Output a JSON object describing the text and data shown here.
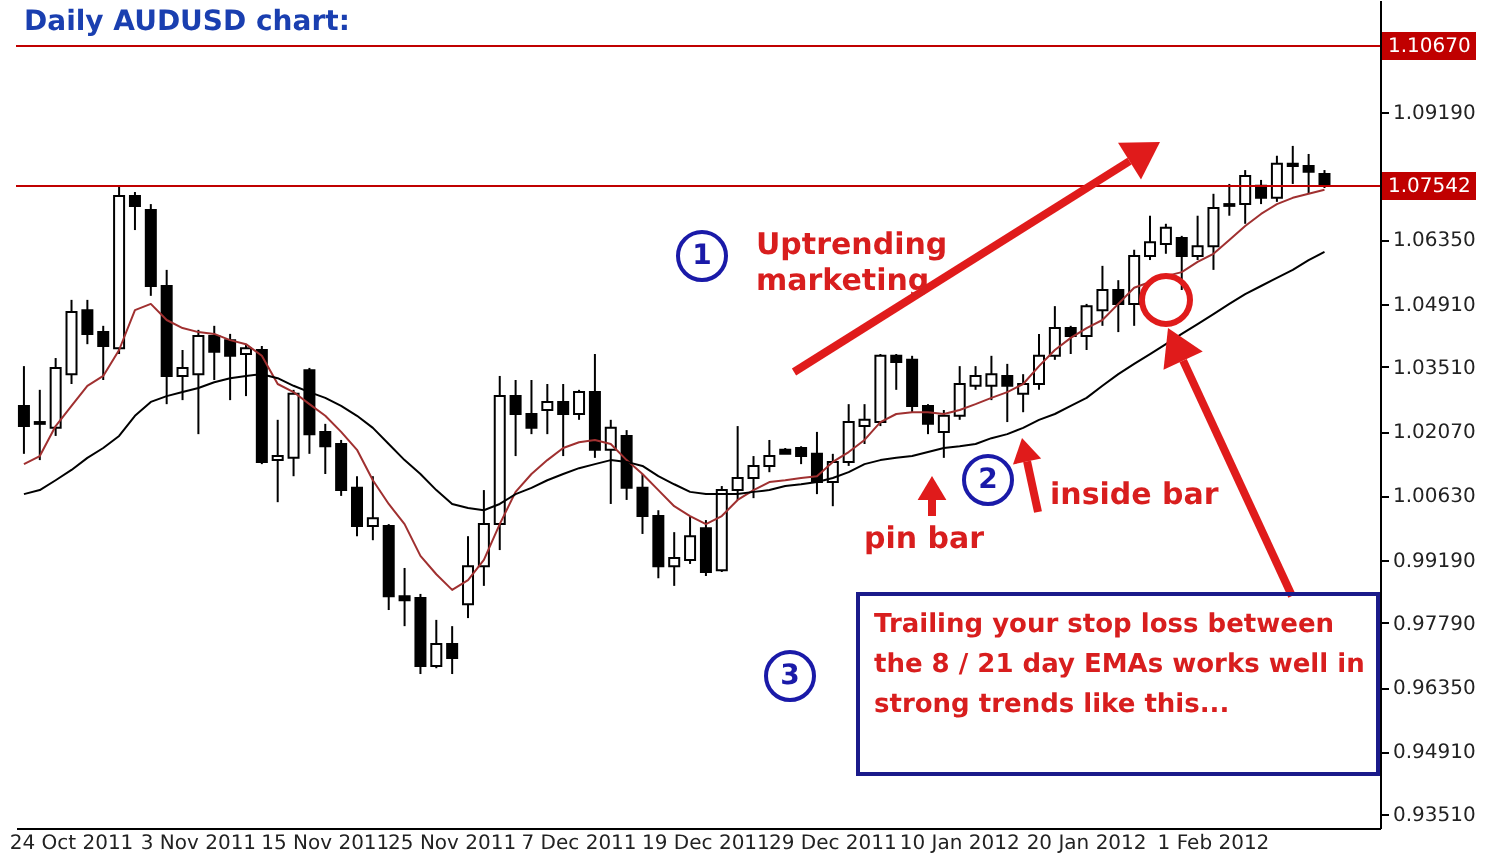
{
  "chart_data": {
    "type": "candlestick",
    "title": "Daily AUDUSD chart:",
    "categories": [
      null,
      null,
      null,
      "24 Oct 2011",
      null,
      null,
      null,
      null,
      null,
      null,
      null,
      "3 Nov 2011",
      null,
      null,
      null,
      null,
      null,
      null,
      null,
      "15 Nov 2011",
      null,
      null,
      null,
      null,
      null,
      null,
      null,
      "25 Nov 2011",
      null,
      null,
      null,
      null,
      null,
      null,
      null,
      "7 Dec 2011",
      null,
      null,
      null,
      null,
      null,
      null,
      null,
      "19 Dec 2011",
      null,
      null,
      null,
      null,
      null,
      null,
      null,
      "29 Dec 2011",
      null,
      null,
      null,
      null,
      null,
      null,
      null,
      "10 Jan 2012",
      null,
      null,
      null,
      null,
      null,
      null,
      null,
      "20 Jan 2012",
      null,
      null,
      null,
      null,
      null,
      null,
      null,
      "1 Feb 2012",
      null,
      null,
      null,
      null,
      null,
      null,
      null,
      null,
      null,
      null
    ],
    "ohlc": [
      [
        1.0263,
        1.0352,
        1.0156,
        1.0218
      ],
      [
        1.0227,
        1.0299,
        1.0142,
        1.0223
      ],
      [
        1.0214,
        1.037,
        1.0196,
        1.0348
      ],
      [
        1.0334,
        1.05,
        1.0312,
        1.0473
      ],
      [
        1.0477,
        1.05,
        1.0401,
        1.0424
      ],
      [
        1.0428,
        1.0442,
        1.0321,
        1.0397
      ],
      [
        1.0392,
        1.0755,
        1.0379,
        1.0732
      ],
      [
        1.0732,
        1.0741,
        1.0656,
        1.071
      ],
      [
        1.0701,
        1.0714,
        1.0509,
        1.0531
      ],
      [
        1.0531,
        1.0567,
        1.0267,
        1.033
      ],
      [
        1.033,
        1.0388,
        1.0276,
        1.0348
      ],
      [
        1.0334,
        1.0433,
        1.02,
        1.0419
      ],
      [
        1.0419,
        1.0442,
        1.0321,
        1.0384
      ],
      [
        1.041,
        1.0424,
        1.0276,
        1.0375
      ],
      [
        1.0379,
        1.0401,
        1.0285,
        1.0392
      ],
      [
        1.0388,
        1.0397,
        1.0133,
        1.0138
      ],
      [
        1.0142,
        1.0232,
        1.0048,
        1.0151
      ],
      [
        1.0147,
        1.0299,
        1.0106,
        1.029
      ],
      [
        1.0343,
        1.0348,
        1.0156,
        1.02
      ],
      [
        1.0205,
        1.0223,
        1.0111,
        1.0173
      ],
      [
        1.0178,
        1.0187,
        1.0062,
        1.0075
      ],
      [
        1.008,
        1.0106,
        0.9972,
        0.9995
      ],
      [
        0.9995,
        1.0106,
        0.9963,
        1.0012
      ],
      [
        0.9995,
        0.9999,
        0.9807,
        0.9838
      ],
      [
        0.9838,
        0.9901,
        0.9771,
        0.9829
      ],
      [
        0.9834,
        0.9843,
        0.9664,
        0.9682
      ],
      [
        0.9682,
        0.9785,
        0.9677,
        0.9731
      ],
      [
        0.9731,
        0.9771,
        0.9664,
        0.97
      ],
      [
        0.982,
        0.9972,
        0.9789,
        0.9905
      ],
      [
        0.9905,
        1.0075,
        0.9861,
        0.9999
      ],
      [
        0.9999,
        1.033,
        0.9941,
        1.0285
      ],
      [
        1.0285,
        1.0321,
        1.0151,
        1.0245
      ],
      [
        1.0245,
        1.0321,
        1.02,
        1.0214
      ],
      [
        1.0254,
        1.0312,
        1.02,
        1.0272
      ],
      [
        1.0272,
        1.0312,
        1.0151,
        1.0245
      ],
      [
        1.0245,
        1.0299,
        1.0232,
        1.0294
      ],
      [
        1.0294,
        1.0379,
        1.0147,
        1.0165
      ],
      [
        1.0165,
        1.0232,
        1.0044,
        1.0214
      ],
      [
        1.0196,
        1.0209,
        1.0053,
        1.008
      ],
      [
        1.008,
        1.0111,
        0.9977,
        1.0017
      ],
      [
        1.0017,
        1.003,
        0.9878,
        0.9905
      ],
      [
        0.9905,
        0.9981,
        0.9861,
        0.9923
      ],
      [
        0.9919,
        1.0017,
        0.991,
        0.9972
      ],
      [
        0.999,
        1.0008,
        0.9883,
        0.9892
      ],
      [
        0.9896,
        1.0084,
        0.9892,
        1.0075
      ],
      [
        1.0075,
        1.0218,
        1.0053,
        1.0102
      ],
      [
        1.0102,
        1.0151,
        1.0057,
        1.0129
      ],
      [
        1.0129,
        1.0187,
        1.0115,
        1.0151
      ],
      [
        1.0165,
        1.0169,
        1.0156,
        1.0156
      ],
      [
        1.0169,
        1.0173,
        1.0133,
        1.0151
      ],
      [
        1.0156,
        1.0205,
        1.0066,
        1.0093
      ],
      [
        1.0093,
        1.0156,
        1.0039,
        1.0138
      ],
      [
        1.0138,
        1.0267,
        1.0129,
        1.0227
      ],
      [
        1.0218,
        1.0267,
        1.0178,
        1.0232
      ],
      [
        1.0227,
        1.0379,
        1.0218,
        1.0375
      ],
      [
        1.0375,
        1.0379,
        1.0299,
        1.0361
      ],
      [
        1.0366,
        1.0375,
        1.0249,
        1.0263
      ],
      [
        1.0263,
        1.0267,
        1.02,
        1.0223
      ],
      [
        1.0205,
        1.0254,
        1.0147,
        1.0241
      ],
      [
        1.0241,
        1.0352,
        1.0232,
        1.0312
      ],
      [
        1.0308,
        1.0352,
        1.0299,
        1.033
      ],
      [
        1.0308,
        1.0375,
        1.0276,
        1.0334
      ],
      [
        1.033,
        1.0357,
        1.0227,
        1.0308
      ],
      [
        1.029,
        1.0334,
        1.0249,
        1.0312
      ],
      [
        1.0312,
        1.0424,
        1.0299,
        1.0375
      ],
      [
        1.0375,
        1.0486,
        1.0366,
        1.0437
      ],
      [
        1.0437,
        1.0442,
        1.0379,
        1.0419
      ],
      [
        1.0419,
        1.0491,
        1.0388,
        1.0486
      ],
      [
        1.0477,
        1.0576,
        1.0442,
        1.0522
      ],
      [
        1.0522,
        1.0544,
        1.0428,
        1.0491
      ],
      [
        1.0491,
        1.0612,
        1.0442,
        1.0598
      ],
      [
        1.0598,
        1.0688,
        1.0589,
        1.0629
      ],
      [
        1.0625,
        1.067,
        1.0603,
        1.0661
      ],
      [
        1.0638,
        1.0643,
        1.0522,
        1.0598
      ],
      [
        1.0598,
        1.0688,
        1.0589,
        1.062
      ],
      [
        1.062,
        1.0737,
        1.0567,
        1.0705
      ],
      [
        1.0714,
        1.0759,
        1.0688,
        1.071
      ],
      [
        1.0714,
        1.079,
        1.067,
        1.0777
      ],
      [
        1.0755,
        1.0768,
        1.0714,
        1.0728
      ],
      [
        1.0728,
        1.0822,
        1.0719,
        1.0804
      ],
      [
        1.0804,
        1.0844,
        1.0759,
        1.0799
      ],
      [
        1.0799,
        1.0826,
        1.0737,
        1.0786
      ],
      [
        1.0781,
        1.079,
        1.075,
        1.0755
      ],
      null,
      null,
      null
    ],
    "series": [
      {
        "type": "line",
        "color": "#a03030",
        "values": [
          1.0133,
          1.0151,
          1.0218,
          1.0263,
          1.0308,
          1.033,
          1.0388,
          1.0477,
          1.0491,
          1.0455,
          1.0437,
          1.0428,
          1.0424,
          1.041,
          1.0401,
          1.0375,
          1.0312,
          1.0294,
          1.0267,
          1.0241,
          1.0205,
          1.0165,
          1.0097,
          1.0044,
          0.9999,
          0.9928,
          0.9887,
          0.9852,
          0.9874,
          0.9919,
          0.9999,
          1.0071,
          1.0111,
          1.0142,
          1.0169,
          1.0182,
          1.0187,
          1.0178,
          1.0142,
          1.0111,
          1.0075,
          1.0039,
          1.0017,
          0.9999,
          1.0017,
          1.0053,
          1.0075,
          1.0093,
          1.0097,
          1.0102,
          1.0106,
          1.0138,
          1.016,
          1.0187,
          1.0227,
          1.0245,
          1.0249,
          1.0249,
          1.0245,
          1.0254,
          1.0267,
          1.0281,
          1.0294,
          1.0312,
          1.0352,
          1.0388,
          1.0415,
          1.0437,
          1.0455,
          1.0491,
          1.0527,
          1.054,
          1.0553,
          1.0562,
          1.0585,
          1.0603,
          1.0634,
          1.0665,
          1.0692,
          1.0714,
          1.0728,
          1.0737,
          1.0746,
          null,
          null,
          null
        ]
      },
      {
        "type": "line",
        "color": "#000000",
        "values": [
          1.0066,
          1.0075,
          1.0097,
          1.012,
          1.0147,
          1.0169,
          1.0196,
          1.0241,
          1.0272,
          1.0285,
          1.0294,
          1.0303,
          1.0316,
          1.0325,
          1.033,
          1.0334,
          1.0325,
          1.0308,
          1.0294,
          1.0281,
          1.0263,
          1.0241,
          1.0214,
          1.0178,
          1.0142,
          1.0111,
          1.0075,
          1.0044,
          1.0035,
          1.003,
          1.0044,
          1.0066,
          1.008,
          1.0097,
          1.0111,
          1.0124,
          1.0133,
          1.0142,
          1.0138,
          1.0129,
          1.0106,
          1.0088,
          1.0071,
          1.0066,
          1.0066,
          1.0066,
          1.0071,
          1.0075,
          1.0084,
          1.0088,
          1.0093,
          1.0102,
          1.0115,
          1.0133,
          1.0142,
          1.0147,
          1.0151,
          1.016,
          1.0169,
          1.0173,
          1.0178,
          1.0191,
          1.02,
          1.0214,
          1.0232,
          1.0245,
          1.0263,
          1.0281,
          1.0308,
          1.0334,
          1.0357,
          1.0379,
          1.0401,
          1.0424,
          1.0446,
          1.0468,
          1.0491,
          1.0513,
          1.0531,
          1.0549,
          1.0567,
          1.0589,
          1.0607,
          null,
          null,
          null
        ]
      }
    ],
    "ylim": [
      0.932,
      1.117
    ],
    "yticks": [
      {
        "value": 0.9351,
        "label": "0.93510"
      },
      {
        "value": 0.9491,
        "label": "0.94910"
      },
      {
        "value": 0.9635,
        "label": "0.96350"
      },
      {
        "value": 0.9779,
        "label": "0.97790"
      },
      {
        "value": 0.9919,
        "label": "0.99190"
      },
      {
        "value": 1.0063,
        "label": "1.00630"
      },
      {
        "value": 1.0207,
        "label": "1.02070"
      },
      {
        "value": 1.0351,
        "label": "1.03510"
      },
      {
        "value": 1.0491,
        "label": "1.04910"
      },
      {
        "value": 1.0635,
        "label": "1.06350"
      },
      {
        "value": 1.0779,
        "label": null
      },
      {
        "value": 1.0919,
        "label": "1.09190"
      }
    ],
    "ref_lines": [
      {
        "axis": "y",
        "value": 1.1067,
        "label": "1.10670",
        "color": "#c00000"
      },
      {
        "axis": "y",
        "value": 1.07542,
        "label": "1.07542",
        "color": "#c00000"
      }
    ],
    "annotations": [
      "Uptrending marketing",
      "1",
      "2",
      "3",
      "pin bar",
      "inside bar",
      "Trailing your stop loss between the 8 / 21 day EMAs works well in strong trends like this..."
    ]
  }
}
